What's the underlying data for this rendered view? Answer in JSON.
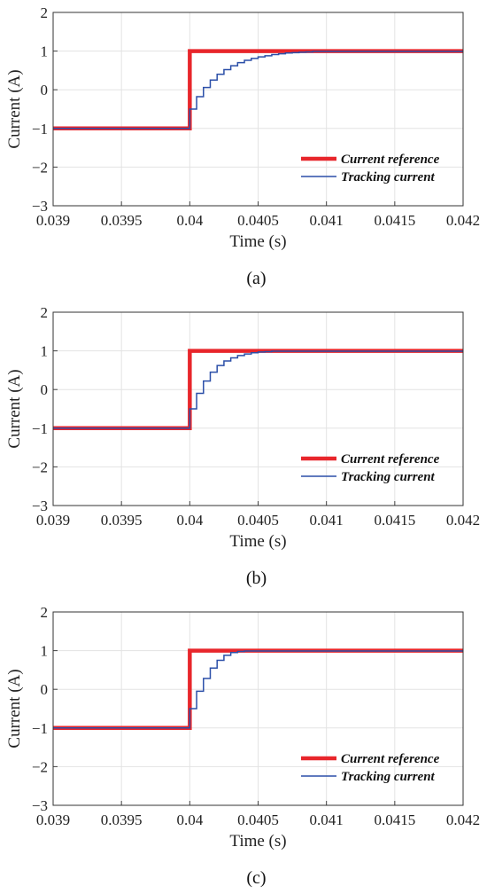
{
  "chart_data": [
    {
      "type": "line",
      "caption": "(a)",
      "xlabel": "Time (s)",
      "ylabel": "Current (A)",
      "xlim": [
        0.039,
        0.042
      ],
      "ylim": [
        -3,
        2
      ],
      "xticks": [
        "0.039",
        "0.0395",
        "0.04",
        "0.0405",
        "0.041",
        "0.0415",
        "0.042"
      ],
      "yticks": [
        "2",
        "1",
        "0",
        "−1",
        "−2",
        "−3"
      ],
      "grid": true,
      "legend_position": "bottom-right",
      "series": [
        {
          "name": "Current reference",
          "color": "#e8262b",
          "style": "thick",
          "points": [
            [
              0.039,
              -1
            ],
            [
              0.04,
              -1
            ],
            [
              0.04,
              1
            ],
            [
              0.042,
              1
            ]
          ]
        },
        {
          "name": "Tracking current",
          "color": "#2b4fa8",
          "style": "step",
          "points": [
            [
              0.039,
              -1
            ],
            [
              0.04,
              -1
            ],
            [
              0.04,
              -0.5
            ],
            [
              0.04005,
              -0.5
            ],
            [
              0.04005,
              -0.18
            ],
            [
              0.0401,
              -0.18
            ],
            [
              0.0401,
              0.06
            ],
            [
              0.04015,
              0.06
            ],
            [
              0.04015,
              0.25
            ],
            [
              0.0402,
              0.25
            ],
            [
              0.0402,
              0.4
            ],
            [
              0.04025,
              0.4
            ],
            [
              0.04025,
              0.52
            ],
            [
              0.0403,
              0.52
            ],
            [
              0.0403,
              0.62
            ],
            [
              0.04035,
              0.62
            ],
            [
              0.04035,
              0.7
            ],
            [
              0.0404,
              0.7
            ],
            [
              0.0404,
              0.76
            ],
            [
              0.04045,
              0.76
            ],
            [
              0.04045,
              0.81
            ],
            [
              0.0405,
              0.81
            ],
            [
              0.0405,
              0.85
            ],
            [
              0.04055,
              0.85
            ],
            [
              0.04055,
              0.88
            ],
            [
              0.0406,
              0.88
            ],
            [
              0.0406,
              0.91
            ],
            [
              0.04065,
              0.91
            ],
            [
              0.04065,
              0.93
            ],
            [
              0.0407,
              0.93
            ],
            [
              0.0407,
              0.95
            ],
            [
              0.04075,
              0.95
            ],
            [
              0.04075,
              0.96
            ],
            [
              0.0408,
              0.96
            ],
            [
              0.0408,
              0.97
            ],
            [
              0.04085,
              0.97
            ],
            [
              0.04085,
              0.98
            ],
            [
              0.0409,
              0.98
            ],
            [
              0.0409,
              0.99
            ],
            [
              0.042,
              0.99
            ]
          ]
        }
      ]
    },
    {
      "type": "line",
      "caption": "(b)",
      "xlabel": "Time (s)",
      "ylabel": "Current (A)",
      "xlim": [
        0.039,
        0.042
      ],
      "ylim": [
        -3,
        2
      ],
      "xticks": [
        "0.039",
        "0.0395",
        "0.04",
        "0.0405",
        "0.041",
        "0.0415",
        "0.042"
      ],
      "yticks": [
        "2",
        "1",
        "0",
        "−1",
        "−2",
        "−3"
      ],
      "grid": true,
      "legend_position": "bottom-right",
      "series": [
        {
          "name": "Current reference",
          "color": "#e8262b",
          "style": "thick",
          "points": [
            [
              0.039,
              -1
            ],
            [
              0.04,
              -1
            ],
            [
              0.04,
              1
            ],
            [
              0.042,
              1
            ]
          ]
        },
        {
          "name": "Tracking current",
          "color": "#2b4fa8",
          "style": "step",
          "points": [
            [
              0.039,
              -1
            ],
            [
              0.04,
              -1
            ],
            [
              0.04,
              -0.5
            ],
            [
              0.04005,
              -0.5
            ],
            [
              0.04005,
              -0.1
            ],
            [
              0.0401,
              -0.1
            ],
            [
              0.0401,
              0.22
            ],
            [
              0.04015,
              0.22
            ],
            [
              0.04015,
              0.45
            ],
            [
              0.0402,
              0.45
            ],
            [
              0.0402,
              0.62
            ],
            [
              0.04025,
              0.62
            ],
            [
              0.04025,
              0.74
            ],
            [
              0.0403,
              0.74
            ],
            [
              0.0403,
              0.82
            ],
            [
              0.04035,
              0.82
            ],
            [
              0.04035,
              0.88
            ],
            [
              0.0404,
              0.88
            ],
            [
              0.0404,
              0.92
            ],
            [
              0.04045,
              0.92
            ],
            [
              0.04045,
              0.95
            ],
            [
              0.0405,
              0.95
            ],
            [
              0.0405,
              0.97
            ],
            [
              0.04055,
              0.97
            ],
            [
              0.04055,
              0.98
            ],
            [
              0.0406,
              0.98
            ],
            [
              0.0406,
              0.99
            ],
            [
              0.042,
              0.99
            ]
          ]
        }
      ]
    },
    {
      "type": "line",
      "caption": "(c)",
      "xlabel": "Time (s)",
      "ylabel": "Current (A)",
      "xlim": [
        0.039,
        0.042
      ],
      "ylim": [
        -3,
        2
      ],
      "xticks": [
        "0.039",
        "0.0395",
        "0.04",
        "0.0405",
        "0.041",
        "0.0415",
        "0.042"
      ],
      "yticks": [
        "2",
        "1",
        "0",
        "−1",
        "−2",
        "−3"
      ],
      "grid": true,
      "legend_position": "bottom-right",
      "series": [
        {
          "name": "Current reference",
          "color": "#e8262b",
          "style": "thick",
          "points": [
            [
              0.039,
              -1
            ],
            [
              0.04,
              -1
            ],
            [
              0.04,
              1
            ],
            [
              0.042,
              1
            ]
          ]
        },
        {
          "name": "Tracking current",
          "color": "#2b4fa8",
          "style": "step",
          "points": [
            [
              0.039,
              -1
            ],
            [
              0.04,
              -1
            ],
            [
              0.04,
              -0.5
            ],
            [
              0.04005,
              -0.5
            ],
            [
              0.04005,
              -0.05
            ],
            [
              0.0401,
              -0.05
            ],
            [
              0.0401,
              0.28
            ],
            [
              0.04015,
              0.28
            ],
            [
              0.04015,
              0.55
            ],
            [
              0.0402,
              0.55
            ],
            [
              0.0402,
              0.75
            ],
            [
              0.04025,
              0.75
            ],
            [
              0.04025,
              0.88
            ],
            [
              0.0403,
              0.88
            ],
            [
              0.0403,
              0.95
            ],
            [
              0.04035,
              0.95
            ],
            [
              0.04035,
              0.98
            ],
            [
              0.0404,
              0.98
            ],
            [
              0.0404,
              0.99
            ],
            [
              0.042,
              0.99
            ]
          ]
        }
      ]
    }
  ]
}
